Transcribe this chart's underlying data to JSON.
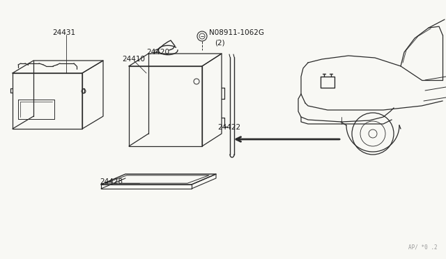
{
  "bg": "#f8f8f4",
  "lc": "#2a2a2a",
  "tc": "#1a1a1a",
  "watermark": "AP/ *0 .2"
}
